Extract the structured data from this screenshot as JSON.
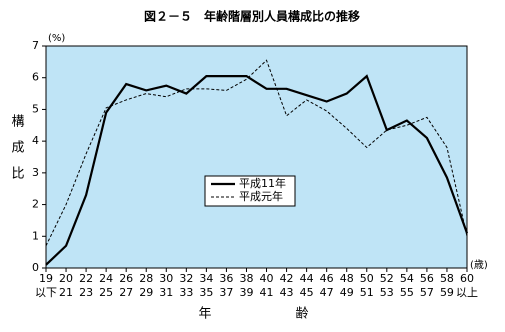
{
  "chart_data": {
    "type": "line",
    "title": "図２－５　年齢階層別人員構成比の推移",
    "y_unit": "(%)",
    "y_label": [
      "構",
      "成",
      "比"
    ],
    "x_unit": "(歳)",
    "x_label": [
      "年",
      "齢"
    ],
    "categories": [
      [
        "19",
        "以下"
      ],
      [
        "20",
        "21"
      ],
      [
        "22",
        "23"
      ],
      [
        "24",
        "25"
      ],
      [
        "26",
        "27"
      ],
      [
        "28",
        "29"
      ],
      [
        "30",
        "31"
      ],
      [
        "32",
        "33"
      ],
      [
        "34",
        "35"
      ],
      [
        "36",
        "37"
      ],
      [
        "38",
        "39"
      ],
      [
        "40",
        "41"
      ],
      [
        "42",
        "43"
      ],
      [
        "44",
        "45"
      ],
      [
        "46",
        "47"
      ],
      [
        "48",
        "49"
      ],
      [
        "50",
        "51"
      ],
      [
        "52",
        "53"
      ],
      [
        "54",
        "55"
      ],
      [
        "56",
        "57"
      ],
      [
        "58",
        "59"
      ],
      [
        "60",
        "以上"
      ]
    ],
    "series": [
      {
        "name": "平成11年",
        "color": "#000000",
        "dash": false,
        "values": [
          0.1,
          0.7,
          2.3,
          4.9,
          5.8,
          5.6,
          5.75,
          5.5,
          6.05,
          6.05,
          6.05,
          5.65,
          5.65,
          5.45,
          5.25,
          5.5,
          6.05,
          4.35,
          4.65,
          4.1,
          2.85,
          1.1
        ]
      },
      {
        "name": "平成元年",
        "color": "#000000",
        "dash": true,
        "values": [
          0.7,
          2.0,
          3.6,
          5.05,
          5.3,
          5.5,
          5.4,
          5.65,
          5.65,
          5.6,
          5.95,
          6.55,
          4.8,
          5.3,
          4.95,
          4.4,
          3.8,
          4.35,
          4.5,
          4.75,
          3.8,
          1.0
        ]
      }
    ],
    "ylim": [
      0,
      7
    ],
    "yticks": [
      0,
      1,
      2,
      3,
      4,
      5,
      6,
      7
    ],
    "background": "#bfe4f6"
  }
}
